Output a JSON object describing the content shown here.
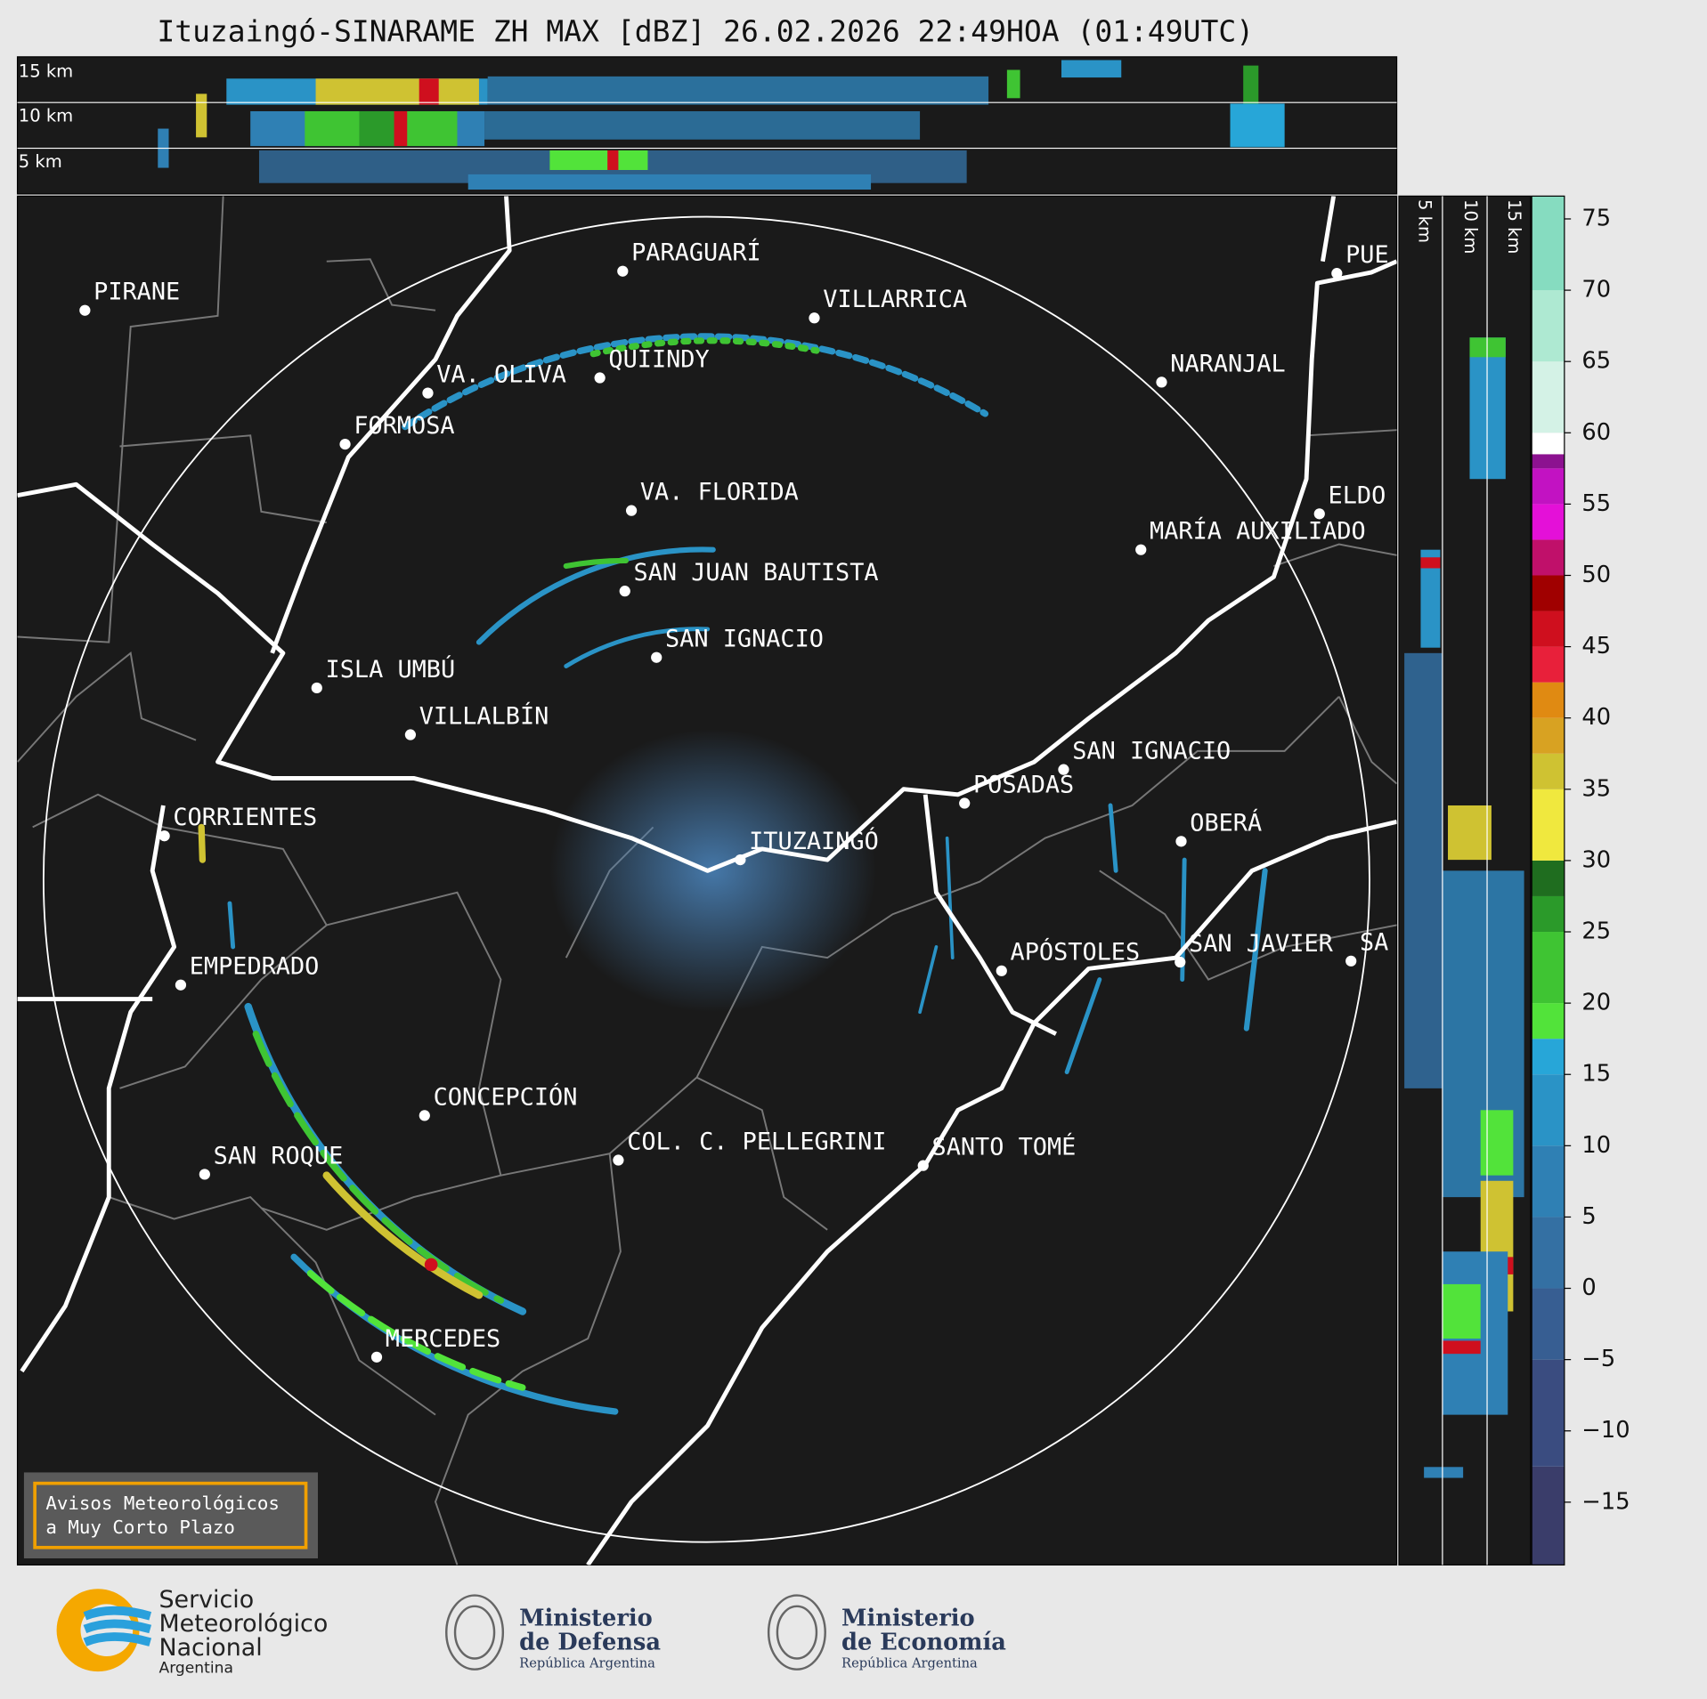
{
  "header": {
    "title": "Ituzaingó-SINARAME ZH MAX [dBZ] 26.02.2026 22:49HOA (01:49UTC)"
  },
  "vertical_profile_top": {
    "height_labels": [
      "15 km",
      "10 km",
      "5 km"
    ]
  },
  "vertical_profile_right": {
    "height_labels": [
      "5 km",
      "10 km",
      "15 km"
    ]
  },
  "map": {
    "cities": [
      "PIRANE",
      "PARAGUARÍ",
      "VILLARRICA",
      "NARANJAL",
      "VA. OLIVA",
      "QUIINDY",
      "FORMOSA",
      "VA. FLORIDA",
      "ELDO",
      "MARÍA AUXILIADO",
      "SAN JUAN BAUTISTA",
      "SAN IGNACIO",
      "ISLA UMBÚ",
      "VILLALBÍN",
      "SAN IGNACIO",
      "POSADAS",
      "CORRIENTES",
      "ITUZAINGÓ",
      "OBERÁ",
      "APÓSTOLES",
      "SAN JAVIER",
      "SA",
      "EMPEDRADO",
      "CONCEPCIÓN",
      "COL. C. PELLEGRINI",
      "SANTO TOMÉ",
      "SAN ROQUE",
      "MERCEDES",
      "PUE"
    ]
  },
  "colorbar": {
    "lim": [
      -19.4,
      76.6
    ],
    "ticks": [
      75,
      70,
      65,
      60,
      55,
      50,
      45,
      40,
      35,
      30,
      25,
      20,
      15,
      10,
      5,
      0,
      {
        "value": -5,
        "label": "−5"
      },
      {
        "value": -10,
        "label": "−10"
      },
      {
        "value": -15,
        "label": "−15"
      }
    ],
    "segments": [
      {
        "from": -19.4,
        "color": "#3a3d6a"
      },
      {
        "from": -12.5,
        "color": "#3a4c80"
      },
      {
        "from": -5,
        "color": "#375e92"
      },
      {
        "from": 0,
        "color": "#3470a3"
      },
      {
        "from": 5,
        "color": "#2f80b4"
      },
      {
        "from": 10,
        "color": "#2a93c6"
      },
      {
        "from": 15,
        "color": "#27a6d8"
      },
      {
        "from": 17.5,
        "color": "#52e33a"
      },
      {
        "from": 20,
        "color": "#3fc433"
      },
      {
        "from": 25,
        "color": "#2b9a2a"
      },
      {
        "from": 27.5,
        "color": "#1f6d1f"
      },
      {
        "from": 30,
        "color": "#f0e83e"
      },
      {
        "from": 35,
        "color": "#cfc232"
      },
      {
        "from": 37.5,
        "color": "#d8a222"
      },
      {
        "from": 40,
        "color": "#e08a12"
      },
      {
        "from": 42.5,
        "color": "#e8203a"
      },
      {
        "from": 45,
        "color": "#cf0f1e"
      },
      {
        "from": 47.5,
        "color": "#a00000"
      },
      {
        "from": 50,
        "color": "#c0106a"
      },
      {
        "from": 52.5,
        "color": "#e410d8"
      },
      {
        "from": 55,
        "color": "#c212c2"
      },
      {
        "from": 57.5,
        "color": "#8c1290"
      },
      {
        "from": 58.5,
        "color": "#ffffff"
      },
      {
        "from": 60,
        "color": "#d4f2e6"
      },
      {
        "from": 65,
        "color": "#aee9d2"
      },
      {
        "from": 70,
        "color": "#86dcc0"
      }
    ]
  },
  "warning_box": {
    "lines": [
      "Avisos Meteorológicos",
      "a Muy Corto Plazo"
    ]
  },
  "logos": {
    "smn": [
      "Servicio",
      "Meteorológico",
      "Nacional",
      "Argentina"
    ],
    "defensa": [
      "Ministerio",
      "de Defensa",
      "República Argentina"
    ],
    "economia": [
      "Ministerio",
      "de Economía",
      "República Argentina"
    ]
  }
}
